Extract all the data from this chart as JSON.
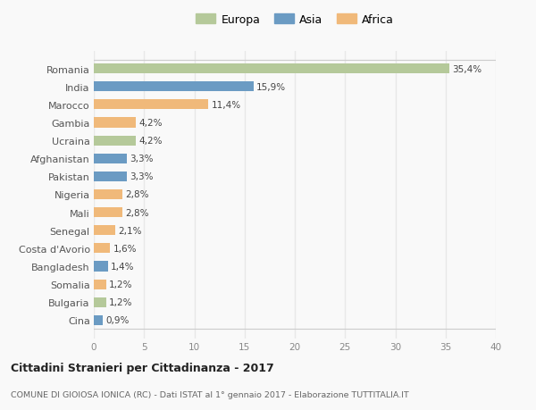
{
  "countries": [
    "Romania",
    "India",
    "Marocco",
    "Gambia",
    "Ucraina",
    "Afghanistan",
    "Pakistan",
    "Nigeria",
    "Mali",
    "Senegal",
    "Costa d'Avorio",
    "Bangladesh",
    "Somalia",
    "Bulgaria",
    "Cina"
  ],
  "values": [
    35.4,
    15.9,
    11.4,
    4.2,
    4.2,
    3.3,
    3.3,
    2.8,
    2.8,
    2.1,
    1.6,
    1.4,
    1.2,
    1.2,
    0.9
  ],
  "labels": [
    "35,4%",
    "15,9%",
    "11,4%",
    "4,2%",
    "4,2%",
    "3,3%",
    "3,3%",
    "2,8%",
    "2,8%",
    "2,1%",
    "1,6%",
    "1,4%",
    "1,2%",
    "1,2%",
    "0,9%"
  ],
  "continents": [
    "Europa",
    "Asia",
    "Africa",
    "Africa",
    "Europa",
    "Asia",
    "Asia",
    "Africa",
    "Africa",
    "Africa",
    "Africa",
    "Asia",
    "Africa",
    "Europa",
    "Asia"
  ],
  "colors": {
    "Europa": "#b5c99a",
    "Asia": "#6b9bc3",
    "Africa": "#f0b97a"
  },
  "legend": [
    "Europa",
    "Asia",
    "Africa"
  ],
  "legend_colors": [
    "#b5c99a",
    "#6b9bc3",
    "#f0b97a"
  ],
  "xlim": [
    0,
    40
  ],
  "xticks": [
    0,
    5,
    10,
    15,
    20,
    25,
    30,
    35,
    40
  ],
  "title": "Cittadini Stranieri per Cittadinanza - 2017",
  "subtitle": "COMUNE DI GIOIOSA IONICA (RC) - Dati ISTAT al 1° gennaio 2017 - Elaborazione TUTTITALIA.IT",
  "bg_color": "#f9f9f9",
  "grid_color": "#e8e8e8",
  "bar_height": 0.55
}
